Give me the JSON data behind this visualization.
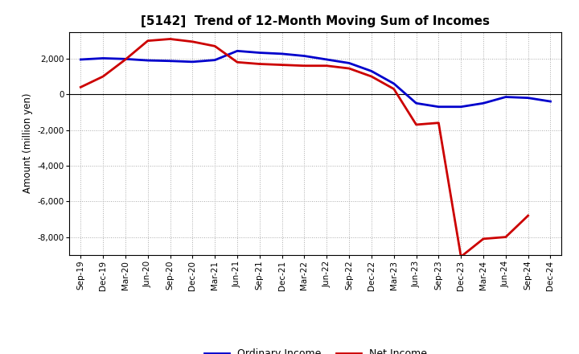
{
  "title": "[5142]  Trend of 12-Month Moving Sum of Incomes",
  "ylabel": "Amount (million yen)",
  "ylim": [
    -9000,
    3500
  ],
  "yticks": [
    -8000,
    -6000,
    -4000,
    -2000,
    0,
    2000
  ],
  "background_color": "#ffffff",
  "plot_bg_color": "#ffffff",
  "grid_color": "#aaaaaa",
  "x_labels": [
    "Sep-19",
    "Dec-19",
    "Mar-20",
    "Jun-20",
    "Sep-20",
    "Dec-20",
    "Mar-21",
    "Jun-21",
    "Sep-21",
    "Dec-21",
    "Mar-22",
    "Jun-22",
    "Sep-22",
    "Dec-22",
    "Mar-23",
    "Jun-23",
    "Sep-23",
    "Dec-23",
    "Mar-24",
    "Jun-24",
    "Sep-24",
    "Dec-24"
  ],
  "ordinary_income": [
    1950,
    2020,
    1980,
    1900,
    1870,
    1820,
    1920,
    2430,
    2330,
    2270,
    2150,
    1950,
    1750,
    1300,
    600,
    -500,
    -700,
    -700,
    -500,
    -150,
    -200,
    -400
  ],
  "net_income": [
    400,
    1000,
    1950,
    3000,
    3100,
    2950,
    2700,
    1800,
    1700,
    1650,
    1600,
    1600,
    1450,
    1000,
    300,
    -1700,
    -1600,
    -9100,
    -8100,
    -8000,
    -6800,
    null
  ],
  "ordinary_income_color": "#0000cc",
  "net_income_color": "#cc0000",
  "line_width": 2.0,
  "title_fontsize": 11,
  "axis_label_fontsize": 8.5,
  "tick_label_fontsize": 7.5,
  "legend_fontsize": 9
}
